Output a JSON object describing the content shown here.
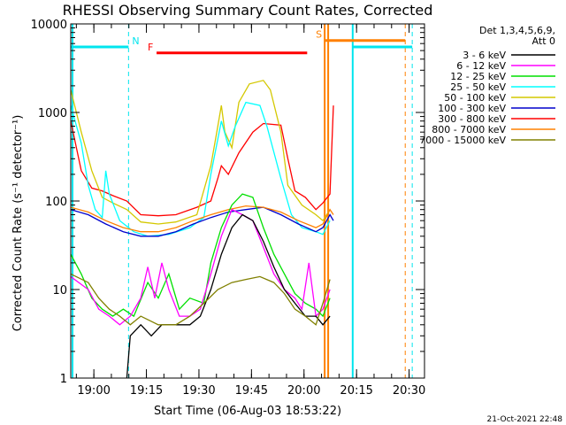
{
  "footer_timestamp": "21-Oct-2021 22:48",
  "colors": {
    "3_6": "#000000",
    "6_12": "#ff00ff",
    "12_25": "#00e000",
    "25_50": "#00ffff",
    "50_100": "#d4c800",
    "100_300": "#0000cc",
    "300_800": "#ff0000",
    "800_7000": "#ff8000",
    "7000_15000": "#808000",
    "night": "#00e5ee",
    "flare": "#ff0000",
    "saa": "#ff8000"
  },
  "chart_data": {
    "type": "line",
    "title": "RHESSI Observing Summary Count Rates, Corrected",
    "xlabel": "Start Time (06-Aug-03 18:53:22)",
    "ylabel": "Corrected Count Rate (s⁻¹ detector⁻¹)",
    "ylog": true,
    "ylim": [
      1,
      10000
    ],
    "xlim_minutes": [
      0,
      101
    ],
    "x_unit": "minutes after 18:53:22",
    "x_ticks": [
      {
        "label": "19:00",
        "minutes": 6.6
      },
      {
        "label": "19:15",
        "minutes": 21.6
      },
      {
        "label": "19:30",
        "minutes": 36.6
      },
      {
        "label": "19:45",
        "minutes": 51.6
      },
      {
        "label": "20:00",
        "minutes": 66.6
      },
      {
        "label": "20:15",
        "minutes": 81.6
      },
      {
        "label": "20:30",
        "minutes": 96.6
      }
    ],
    "y_ticks": [
      {
        "label": "1",
        "value": 1
      },
      {
        "label": "10",
        "value": 10
      },
      {
        "label": "100",
        "value": 100
      },
      {
        "label": "1000",
        "value": 1000
      },
      {
        "label": "10000",
        "value": 10000
      }
    ],
    "legend": {
      "title_line1": "Det 1,3,4,5,6,9,",
      "title_line2": "Att 0",
      "entries": [
        {
          "label": "3 - 6 keV",
          "key": "3_6"
        },
        {
          "label": "6 - 12 keV",
          "key": "6_12"
        },
        {
          "label": "12 - 25 keV",
          "key": "12_25"
        },
        {
          "label": "25 - 50 keV",
          "key": "25_50"
        },
        {
          "label": "50 - 100 keV",
          "key": "50_100"
        },
        {
          "label": "100 - 300 keV",
          "key": "100_300"
        },
        {
          "label": "300 - 800 keV",
          "key": "300_800"
        },
        {
          "label": "800 - 7000 keV",
          "key": "800_7000"
        },
        {
          "label": "7000 - 15000 keV",
          "key": "7000_15000"
        }
      ]
    },
    "flag_bars": [
      {
        "label": "N",
        "key": "night",
        "segments": [
          [
            0,
            16.5
          ],
          [
            80.5,
            97.5
          ]
        ],
        "level": 5500
      },
      {
        "label": "F",
        "key": "flare",
        "segments": [
          [
            24.5,
            67.5
          ]
        ],
        "level": 4700
      },
      {
        "label": "S",
        "key": "saa",
        "segments": [
          [
            72.5,
            95.5
          ]
        ],
        "level": 6500
      }
    ],
    "vlines": [
      {
        "key": "night",
        "minutes": 0.5,
        "style": "solid"
      },
      {
        "key": "night",
        "minutes": 16.5,
        "style": "dashed"
      },
      {
        "key": "night",
        "minutes": 80.5,
        "style": "solid"
      },
      {
        "key": "night",
        "minutes": 97.5,
        "style": "dashed"
      },
      {
        "key": "saa",
        "minutes": 72.5,
        "style": "solid"
      },
      {
        "key": "saa",
        "minutes": 73.5,
        "style": "solid"
      },
      {
        "key": "saa",
        "minutes": 95.5,
        "style": "dashed"
      }
    ],
    "series": [
      {
        "key": "300_800",
        "data": [
          [
            0,
            800
          ],
          [
            3,
            220
          ],
          [
            6,
            140
          ],
          [
            9,
            130
          ],
          [
            12,
            115
          ],
          [
            16,
            100
          ],
          [
            20,
            70
          ],
          [
            25,
            68
          ],
          [
            30,
            70
          ],
          [
            36,
            85
          ],
          [
            40,
            100
          ],
          [
            42,
            180
          ],
          [
            43,
            250
          ],
          [
            45,
            200
          ],
          [
            48,
            350
          ],
          [
            52,
            600
          ],
          [
            55,
            750
          ],
          [
            60,
            720
          ],
          [
            62,
            300
          ],
          [
            64,
            130
          ],
          [
            67,
            110
          ],
          [
            70,
            80
          ],
          [
            72,
            95
          ],
          [
            74,
            120
          ],
          [
            75,
            1200
          ]
        ]
      },
      {
        "key": "50_100",
        "data": [
          [
            0,
            1800
          ],
          [
            3,
            600
          ],
          [
            6,
            220
          ],
          [
            9,
            110
          ],
          [
            12,
            95
          ],
          [
            16,
            80
          ],
          [
            20,
            58
          ],
          [
            25,
            55
          ],
          [
            30,
            58
          ],
          [
            36,
            70
          ],
          [
            40,
            250
          ],
          [
            42,
            700
          ],
          [
            43,
            1200
          ],
          [
            44,
            600
          ],
          [
            46,
            400
          ],
          [
            48,
            1300
          ],
          [
            51,
            2100
          ],
          [
            55,
            2300
          ],
          [
            57,
            1800
          ],
          [
            60,
            600
          ],
          [
            62,
            150
          ],
          [
            66,
            90
          ],
          [
            70,
            70
          ],
          [
            72,
            60
          ],
          [
            74,
            80
          ]
        ]
      },
      {
        "key": "25_50",
        "data": [
          [
            0,
            1200
          ],
          [
            3,
            450
          ],
          [
            5,
            150
          ],
          [
            7,
            80
          ],
          [
            9,
            65
          ],
          [
            10,
            220
          ],
          [
            11,
            120
          ],
          [
            14,
            60
          ],
          [
            18,
            45
          ],
          [
            22,
            40
          ],
          [
            28,
            42
          ],
          [
            34,
            50
          ],
          [
            38,
            65
          ],
          [
            40,
            200
          ],
          [
            42,
            500
          ],
          [
            43,
            800
          ],
          [
            45,
            420
          ],
          [
            47,
            700
          ],
          [
            50,
            1300
          ],
          [
            54,
            1200
          ],
          [
            56,
            700
          ],
          [
            60,
            180
          ],
          [
            63,
            70
          ],
          [
            66,
            50
          ],
          [
            70,
            45
          ],
          [
            72,
            42
          ],
          [
            74,
            60
          ]
        ]
      },
      {
        "key": "100_300",
        "data": [
          [
            0,
            80
          ],
          [
            5,
            70
          ],
          [
            10,
            55
          ],
          [
            15,
            45
          ],
          [
            20,
            40
          ],
          [
            25,
            40
          ],
          [
            30,
            45
          ],
          [
            35,
            55
          ],
          [
            40,
            65
          ],
          [
            45,
            75
          ],
          [
            50,
            80
          ],
          [
            55,
            85
          ],
          [
            60,
            70
          ],
          [
            65,
            55
          ],
          [
            70,
            45
          ],
          [
            72,
            50
          ],
          [
            74,
            70
          ],
          [
            75,
            60
          ]
        ]
      },
      {
        "key": "800_7000",
        "data": [
          [
            0,
            85
          ],
          [
            5,
            75
          ],
          [
            10,
            60
          ],
          [
            15,
            50
          ],
          [
            20,
            45
          ],
          [
            25,
            45
          ],
          [
            30,
            50
          ],
          [
            35,
            60
          ],
          [
            40,
            70
          ],
          [
            45,
            80
          ],
          [
            50,
            88
          ],
          [
            55,
            85
          ],
          [
            60,
            75
          ],
          [
            65,
            60
          ],
          [
            70,
            50
          ],
          [
            72,
            55
          ],
          [
            74,
            80
          ],
          [
            75,
            70
          ]
        ]
      },
      {
        "key": "12_25",
        "data": [
          [
            0,
            25
          ],
          [
            3,
            15
          ],
          [
            6,
            8
          ],
          [
            9,
            6
          ],
          [
            12,
            5
          ],
          [
            15,
            6
          ],
          [
            18,
            5
          ],
          [
            22,
            12
          ],
          [
            25,
            8
          ],
          [
            28,
            15
          ],
          [
            31,
            6
          ],
          [
            34,
            8
          ],
          [
            38,
            7
          ],
          [
            40,
            20
          ],
          [
            43,
            50
          ],
          [
            46,
            90
          ],
          [
            49,
            120
          ],
          [
            52,
            110
          ],
          [
            55,
            50
          ],
          [
            58,
            25
          ],
          [
            61,
            15
          ],
          [
            64,
            9
          ],
          [
            67,
            7
          ],
          [
            70,
            6
          ],
          [
            72,
            5
          ],
          [
            74,
            8
          ]
        ]
      },
      {
        "key": "6_12",
        "data": [
          [
            0,
            14
          ],
          [
            5,
            10
          ],
          [
            8,
            6
          ],
          [
            11,
            5
          ],
          [
            14,
            4
          ],
          [
            17,
            5
          ],
          [
            20,
            8
          ],
          [
            22,
            18
          ],
          [
            24,
            8
          ],
          [
            26,
            20
          ],
          [
            28,
            10
          ],
          [
            31,
            5
          ],
          [
            34,
            5
          ],
          [
            37,
            6
          ],
          [
            40,
            15
          ],
          [
            43,
            40
          ],
          [
            46,
            80
          ],
          [
            49,
            70
          ],
          [
            52,
            60
          ],
          [
            55,
            30
          ],
          [
            58,
            15
          ],
          [
            61,
            10
          ],
          [
            64,
            8
          ],
          [
            66,
            6
          ],
          [
            68,
            20
          ],
          [
            70,
            5
          ],
          [
            72,
            6
          ],
          [
            74,
            10
          ]
        ]
      },
      {
        "key": "3_6",
        "data": [
          [
            16,
            1
          ],
          [
            17,
            3
          ],
          [
            20,
            4
          ],
          [
            23,
            3
          ],
          [
            26,
            4
          ],
          [
            30,
            4
          ],
          [
            34,
            4
          ],
          [
            37,
            5
          ],
          [
            40,
            10
          ],
          [
            43,
            25
          ],
          [
            46,
            50
          ],
          [
            49,
            70
          ],
          [
            52,
            60
          ],
          [
            55,
            35
          ],
          [
            58,
            18
          ],
          [
            61,
            10
          ],
          [
            64,
            7
          ],
          [
            67,
            5
          ],
          [
            70,
            5
          ],
          [
            72,
            4
          ],
          [
            74,
            5
          ]
        ]
      },
      {
        "key": "7000_15000",
        "data": [
          [
            0,
            15
          ],
          [
            5,
            12
          ],
          [
            8,
            8
          ],
          [
            11,
            6
          ],
          [
            14,
            5
          ],
          [
            17,
            4
          ],
          [
            20,
            5
          ],
          [
            25,
            4
          ],
          [
            30,
            4
          ],
          [
            34,
            5
          ],
          [
            38,
            7
          ],
          [
            42,
            10
          ],
          [
            46,
            12
          ],
          [
            50,
            13
          ],
          [
            54,
            14
          ],
          [
            58,
            12
          ],
          [
            61,
            9
          ],
          [
            64,
            6
          ],
          [
            67,
            5
          ],
          [
            70,
            4
          ],
          [
            72,
            7
          ],
          [
            74,
            13
          ]
        ]
      }
    ]
  }
}
